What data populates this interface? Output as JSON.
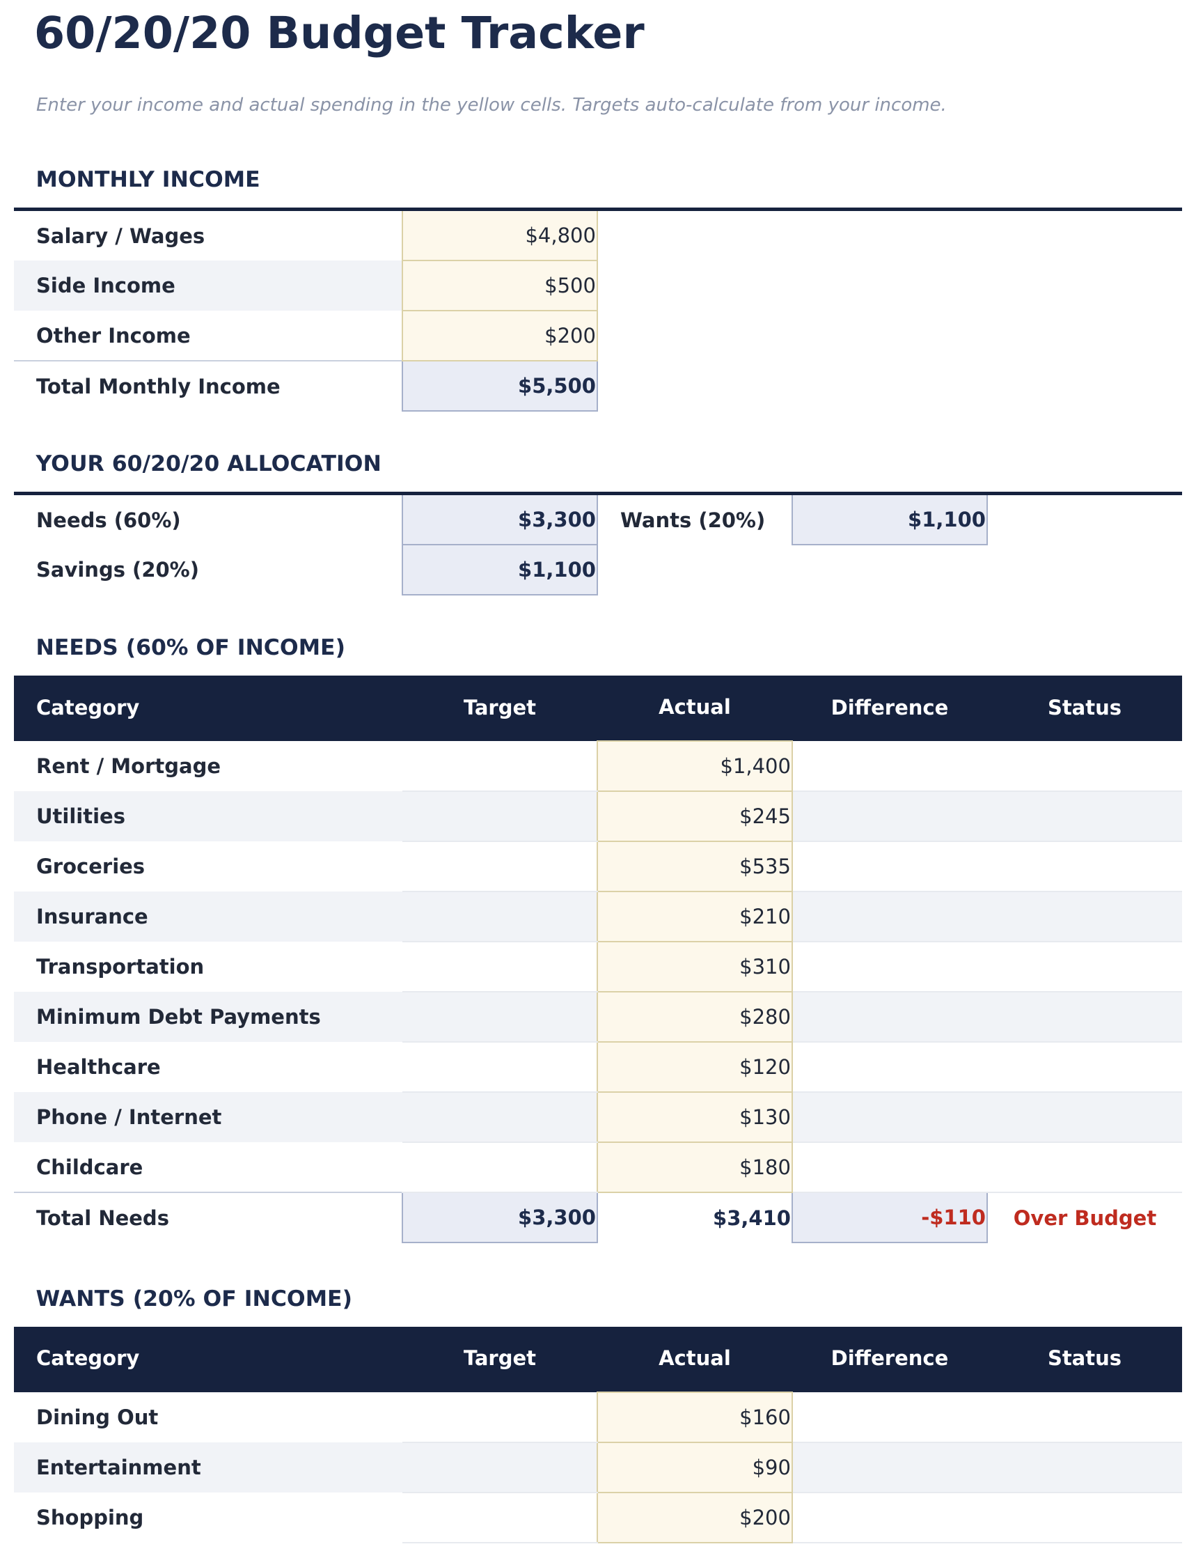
{
  "page": {
    "title": "60/20/20 Budget Tracker",
    "subtitle": "Enter your income and actual spending in the yellow cells. Targets auto-calculate from your income."
  },
  "colors": {
    "navy_header": "#1a2440",
    "input_cell_background": "#fdf8ea",
    "input_cell_border": "#ddd3a9",
    "computed_cell_background": "#e9ecf6",
    "computed_cell_border": "#a9b2cc",
    "over_budget_red": "#c02b21",
    "row_stripe": "#f2f4f7"
  },
  "income": {
    "heading": "MONTHLY INCOME",
    "rows": [
      {
        "label": "Salary / Wages",
        "value": "$4,800"
      },
      {
        "label": "Side Income",
        "value": "$500"
      },
      {
        "label": "Other Income",
        "value": "$200"
      }
    ],
    "total": {
      "label": "Total Monthly Income",
      "value": "$5,500"
    }
  },
  "allocation": {
    "heading": "YOUR 60/20/20 ALLOCATION",
    "cells": [
      {
        "label": "Needs (60%)",
        "value": "$3,300"
      },
      {
        "label": "Wants (20%)",
        "value": "$1,100"
      },
      {
        "label": "Savings (20%)",
        "value": "$1,100"
      }
    ]
  },
  "needs": {
    "heading": "NEEDS (60% OF INCOME)",
    "columns": [
      "Category",
      "Target",
      "Actual",
      "Difference",
      "Status"
    ],
    "rows": [
      {
        "category": "Rent / Mortgage",
        "actual": "$1,400"
      },
      {
        "category": "Utilities",
        "actual": "$245"
      },
      {
        "category": "Groceries",
        "actual": "$535"
      },
      {
        "category": "Insurance",
        "actual": "$210"
      },
      {
        "category": "Transportation",
        "actual": "$310"
      },
      {
        "category": "Minimum Debt Payments",
        "actual": "$280"
      },
      {
        "category": "Healthcare",
        "actual": "$120"
      },
      {
        "category": "Phone / Internet",
        "actual": "$130"
      },
      {
        "category": "Childcare",
        "actual": "$180"
      }
    ],
    "total": {
      "category": "Total Needs",
      "target": "$3,300",
      "actual": "$3,410",
      "difference": "-$110",
      "status": "Over Budget"
    }
  },
  "wants": {
    "heading": "WANTS (20% OF INCOME)",
    "columns": [
      "Category",
      "Target",
      "Actual",
      "Difference",
      "Status"
    ],
    "rows": [
      {
        "category": "Dining Out",
        "actual": "$160"
      },
      {
        "category": "Entertainment",
        "actual": "$90"
      },
      {
        "category": "Shopping",
        "actual": "$200"
      }
    ]
  }
}
